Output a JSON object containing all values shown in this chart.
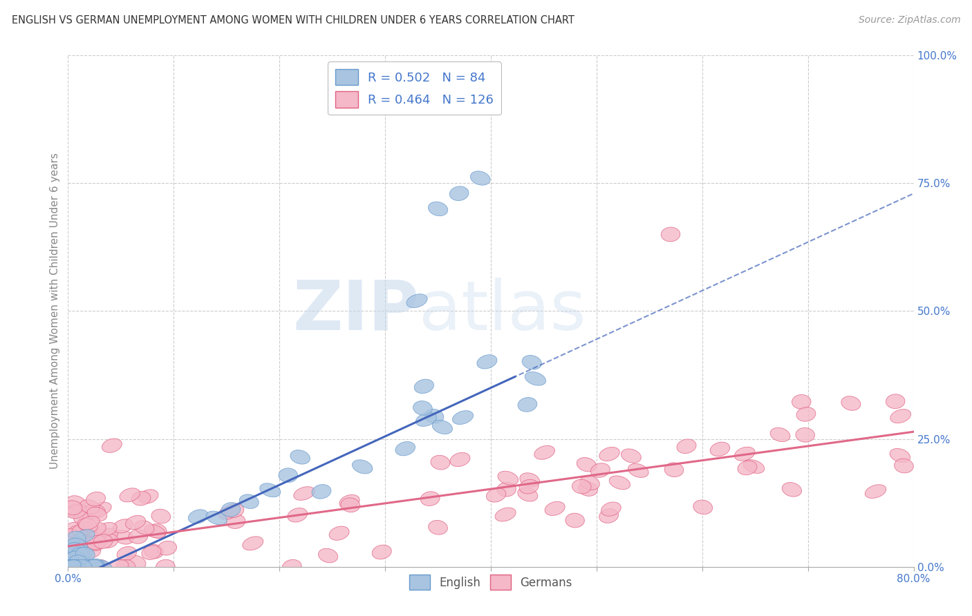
{
  "title": "ENGLISH VS GERMAN UNEMPLOYMENT AMONG WOMEN WITH CHILDREN UNDER 6 YEARS CORRELATION CHART",
  "source": "Source: ZipAtlas.com",
  "ylabel": "Unemployment Among Women with Children Under 6 years",
  "xmin": 0.0,
  "xmax": 0.8,
  "ymin": 0.0,
  "ymax": 1.0,
  "xticks": [
    0.0,
    0.1,
    0.2,
    0.3,
    0.4,
    0.5,
    0.6,
    0.7,
    0.8
  ],
  "yticks_right": [
    0.0,
    0.25,
    0.5,
    0.75,
    1.0
  ],
  "ytick_labels_right": [
    "0.0%",
    "25.0%",
    "50.0%",
    "75.0%",
    "100.0%"
  ],
  "english_color": "#a8c4e0",
  "english_edge_color": "#6699cc",
  "german_color": "#f4b8c8",
  "german_edge_color": "#e06080",
  "english_line_color": "#4466bb",
  "german_line_color": "#e06888",
  "legend_R_english": "0.502",
  "legend_N_english": "84",
  "legend_R_german": "0.464",
  "legend_N_german": "126",
  "watermark_zip": "ZIP",
  "watermark_atlas": "atlas",
  "background_color": "#ffffff",
  "grid_color": "#cccccc",
  "title_color": "#333333",
  "source_color": "#999999",
  "english_intercept": -0.03,
  "english_slope": 0.95,
  "german_intercept": 0.04,
  "german_slope": 0.28
}
